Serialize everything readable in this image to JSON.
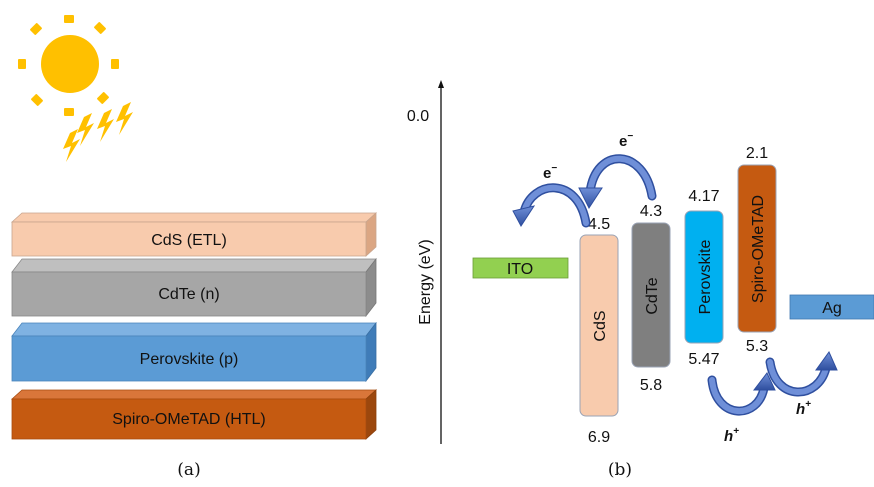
{
  "panel_a": {
    "caption": "(a)",
    "layers": [
      {
        "label": "CdS (ETL)",
        "color": "#f8cbad"
      },
      {
        "label": "CdTe (n)",
        "color": "#a6a6a6"
      },
      {
        "label": "Perovskite (p)",
        "color": "#5b9bd5"
      },
      {
        "label": "Spiro-OMeTAD (HTL)",
        "color": "#c55a11"
      }
    ],
    "sun_icon": "sun-icon",
    "sun_color": "#ffc000",
    "ray_color": "#ffc000"
  },
  "panel_b": {
    "caption": "(b)",
    "axis_label": "Energy (eV)",
    "axis_top_value": "0.0",
    "electrodes": {
      "ito": {
        "label": "ITO",
        "color": "#92d050"
      },
      "ag": {
        "label": "Ag",
        "color": "#5b9bd5"
      }
    },
    "materials": {
      "cds": {
        "label": "CdS",
        "top_value": "4.5",
        "bottom_value": "6.9",
        "color": "#f8cbad"
      },
      "cdte": {
        "label": "CdTe",
        "top_value": "4.3",
        "bottom_value": "5.8",
        "color": "#7f7f7f"
      },
      "perovskite": {
        "label": "Perovskite",
        "top_value": "4.17",
        "bottom_value": "5.47",
        "color": "#00b0f0"
      },
      "spiro": {
        "label": "Spiro-OMeTAD",
        "top_value": "2.1",
        "bottom_value": "5.3",
        "color": "#c55a11"
      }
    },
    "carriers": {
      "electron": "e",
      "electron_sup": "−",
      "hole": "h",
      "hole_sup": "+"
    },
    "arrow_color": "#4472c4"
  }
}
